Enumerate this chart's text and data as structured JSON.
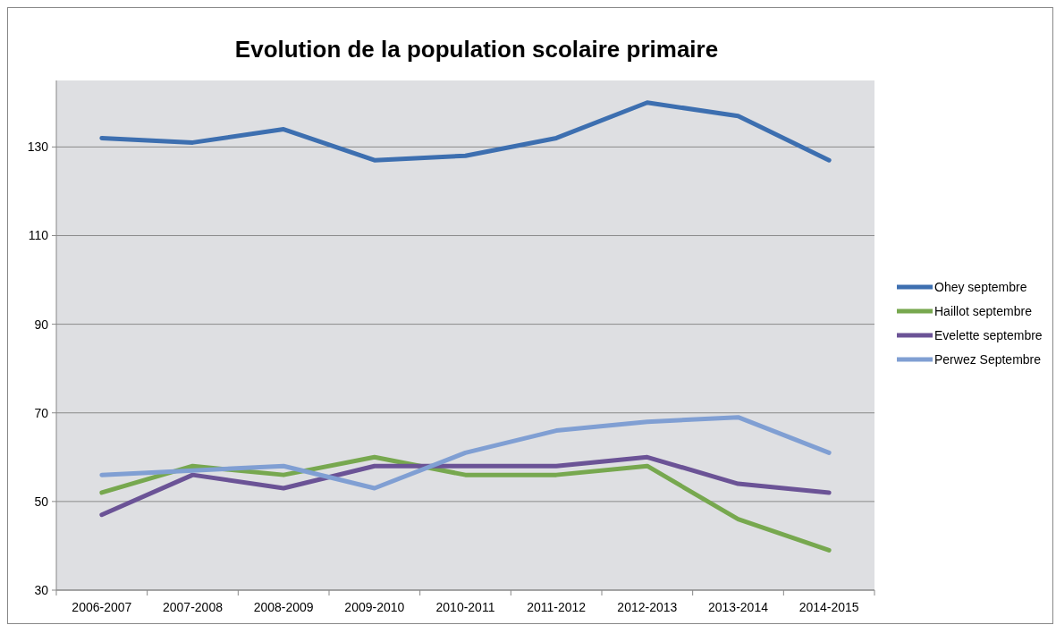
{
  "chart_data": {
    "type": "line",
    "title": "Evolution de la population scolaire primaire",
    "categories": [
      "2006-2007",
      "2007-2008",
      "2008-2009",
      "2009-2010",
      "2010-2011",
      "2011-2012",
      "2012-2013",
      "2013-2014",
      "2014-2015"
    ],
    "series": [
      {
        "name": "Ohey septembre",
        "color": "#3d6fb0",
        "values": [
          132,
          131,
          134,
          127,
          128,
          132,
          140,
          137,
          127
        ]
      },
      {
        "name": "Haillot septembre",
        "color": "#77a84f",
        "values": [
          52,
          58,
          56,
          60,
          56,
          56,
          58,
          46,
          39
        ]
      },
      {
        "name": "Evelette septembre",
        "color": "#6b5396",
        "values": [
          47,
          56,
          53,
          58,
          58,
          58,
          60,
          54,
          52
        ]
      },
      {
        "name": "Perwez Septembre",
        "color": "#809fd3",
        "values": [
          56,
          57,
          58,
          53,
          61,
          66,
          68,
          69,
          61
        ]
      }
    ],
    "ylim": [
      30,
      145
    ],
    "yticks": [
      30,
      50,
      70,
      90,
      110,
      130
    ],
    "grid": "y",
    "legend": "right",
    "marker": "none",
    "line_style": "solid"
  }
}
